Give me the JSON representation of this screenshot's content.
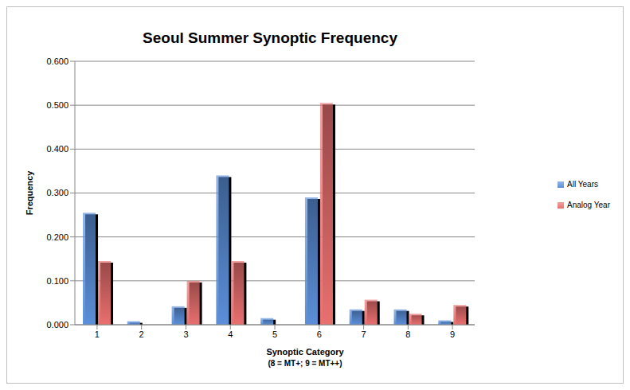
{
  "chart_data": {
    "type": "bar",
    "title": "Seoul Summer Synoptic Frequency",
    "xlabel": "Synoptic Category",
    "annotations": [
      "(8 = MT+; 9 = MT++)"
    ],
    "ylabel": "Frequency",
    "categories": [
      "1",
      "2",
      "3",
      "4",
      "5",
      "6",
      "7",
      "8",
      "9"
    ],
    "series": [
      {
        "name": "All Years",
        "color": "#5b8fd9",
        "values": [
          0.255,
          0.008,
          0.042,
          0.34,
          0.015,
          0.29,
          0.035,
          0.035,
          0.01
        ]
      },
      {
        "name": "Analog Year",
        "color": "#e8706f",
        "values": [
          0.145,
          0,
          0.1,
          0.145,
          0,
          0.505,
          0.057,
          0.025,
          0.045
        ]
      }
    ],
    "ylim": [
      0,
      0.6
    ],
    "yticks": [
      {
        "value": 0,
        "label": "0.000"
      },
      {
        "value": 0.1,
        "label": "0.100"
      },
      {
        "value": 0.2,
        "label": "0.200"
      },
      {
        "value": 0.3,
        "label": "0.300"
      },
      {
        "value": 0.4,
        "label": "0.400"
      },
      {
        "value": 0.5,
        "label": "0.500"
      },
      {
        "value": 0.6,
        "label": "0.600"
      }
    ],
    "grid": true,
    "legend": "right"
  }
}
